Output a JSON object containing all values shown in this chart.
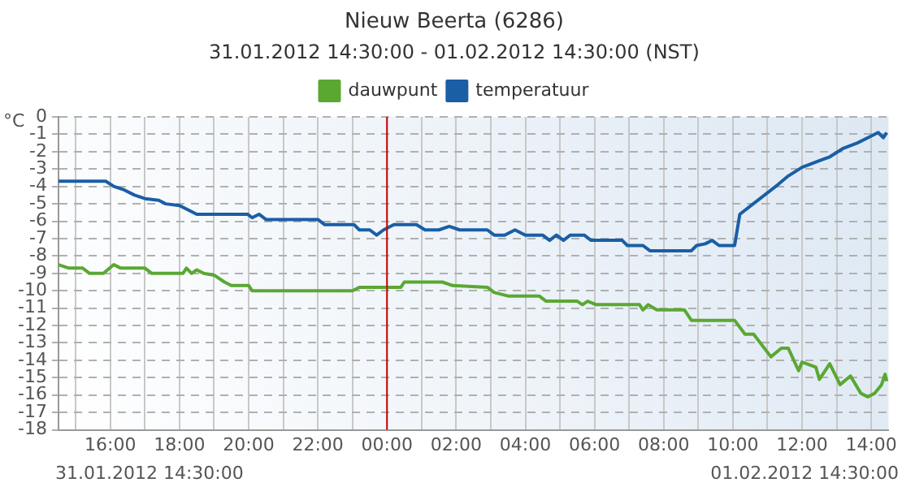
{
  "chart_data": {
    "type": "line",
    "title": "Nieuw Beerta (6286)",
    "subtitle": "31.01.2012 14:30:00 - 01.02.2012 14:30:00 (NST)",
    "ylabel": "°C",
    "annotations": [
      "31.01.2012 14:30:00",
      "01.02.2012 14:30:00"
    ],
    "xlim": [
      "2012-01-31T14:30",
      "2012-02-01T14:30"
    ],
    "xticks": [
      {
        "value": "2012-01-31T15:00",
        "label": null
      },
      {
        "value": "2012-01-31T16:00",
        "label": "16:00"
      },
      {
        "value": "2012-01-31T17:00",
        "label": null
      },
      {
        "value": "2012-01-31T18:00",
        "label": "18:00"
      },
      {
        "value": "2012-01-31T19:00",
        "label": null
      },
      {
        "value": "2012-01-31T20:00",
        "label": "20:00"
      },
      {
        "value": "2012-01-31T21:00",
        "label": null
      },
      {
        "value": "2012-01-31T22:00",
        "label": "22:00"
      },
      {
        "value": "2012-01-31T23:00",
        "label": null
      },
      {
        "value": "2012-02-01T00:00",
        "label": "00:00"
      },
      {
        "value": "2012-02-01T01:00",
        "label": null
      },
      {
        "value": "2012-02-01T02:00",
        "label": "02:00"
      },
      {
        "value": "2012-02-01T03:00",
        "label": null
      },
      {
        "value": "2012-02-01T04:00",
        "label": "04:00"
      },
      {
        "value": "2012-02-01T05:00",
        "label": null
      },
      {
        "value": "2012-02-01T06:00",
        "label": "06:00"
      },
      {
        "value": "2012-02-01T07:00",
        "label": null
      },
      {
        "value": "2012-02-01T08:00",
        "label": "08:00"
      },
      {
        "value": "2012-02-01T09:00",
        "label": null
      },
      {
        "value": "2012-02-01T10:00",
        "label": "10:00"
      },
      {
        "value": "2012-02-01T11:00",
        "label": null
      },
      {
        "value": "2012-02-01T12:00",
        "label": "12:00"
      },
      {
        "value": "2012-02-01T13:00",
        "label": null
      },
      {
        "value": "2012-02-01T14:00",
        "label": "14:00"
      }
    ],
    "ylim": [
      -18,
      0
    ],
    "yticks": [
      0,
      -1,
      -2,
      -3,
      -4,
      -5,
      -6,
      -7,
      -8,
      -9,
      -10,
      -11,
      -12,
      -13,
      -14,
      -15,
      -16,
      -17,
      -18
    ],
    "grid": true,
    "legend": "top",
    "marker": "none",
    "line_style": "solid",
    "ref_lines": [
      {
        "axis": "x",
        "value": "2012-02-01T00:00",
        "color": "#cc0000"
      }
    ],
    "series": [
      {
        "name": "dauwpunt",
        "color": "#5aa832",
        "x": [
          "2012-01-31T14:30",
          "2012-01-31T14:48",
          "2012-01-31T15:12",
          "2012-01-31T15:24",
          "2012-01-31T15:48",
          "2012-01-31T16:06",
          "2012-01-31T16:18",
          "2012-01-31T17:00",
          "2012-01-31T17:12",
          "2012-01-31T18:06",
          "2012-01-31T18:12",
          "2012-01-31T18:21",
          "2012-01-31T18:30",
          "2012-01-31T18:42",
          "2012-01-31T19:00",
          "2012-01-31T19:18",
          "2012-01-31T19:30",
          "2012-01-31T20:00",
          "2012-01-31T20:06",
          "2012-01-31T23:00",
          "2012-01-31T23:12",
          "2012-02-01T00:24",
          "2012-02-01T00:30",
          "2012-02-01T01:36",
          "2012-02-01T01:54",
          "2012-02-01T02:54",
          "2012-02-01T03:06",
          "2012-02-01T03:30",
          "2012-02-01T04:24",
          "2012-02-01T04:36",
          "2012-02-01T05:30",
          "2012-02-01T05:39",
          "2012-02-01T05:48",
          "2012-02-01T06:03",
          "2012-02-01T07:18",
          "2012-02-01T07:24",
          "2012-02-01T07:33",
          "2012-02-01T07:48",
          "2012-02-01T08:36",
          "2012-02-01T08:48",
          "2012-02-01T10:03",
          "2012-02-01T10:21",
          "2012-02-01T10:36",
          "2012-02-01T11:06",
          "2012-02-01T11:24",
          "2012-02-01T11:36",
          "2012-02-01T11:54",
          "2012-02-01T12:00",
          "2012-02-01T12:24",
          "2012-02-01T12:30",
          "2012-02-01T12:48",
          "2012-02-01T13:06",
          "2012-02-01T13:24",
          "2012-02-01T13:42",
          "2012-02-01T13:54",
          "2012-02-01T14:06",
          "2012-02-01T14:18",
          "2012-02-01T14:24",
          "2012-02-01T14:27"
        ],
        "values": [
          -8.5,
          -8.7,
          -8.7,
          -9.0,
          -9.0,
          -8.5,
          -8.7,
          -8.7,
          -9.0,
          -9.0,
          -8.7,
          -9.0,
          -8.8,
          -9.0,
          -9.1,
          -9.5,
          -9.7,
          -9.7,
          -10.0,
          -10.0,
          -9.8,
          -9.8,
          -9.5,
          -9.5,
          -9.7,
          -9.8,
          -10.1,
          -10.3,
          -10.3,
          -10.6,
          -10.6,
          -10.8,
          -10.6,
          -10.8,
          -10.8,
          -11.1,
          -10.8,
          -11.1,
          -11.1,
          -11.7,
          -11.7,
          -12.5,
          -12.5,
          -13.8,
          -13.3,
          -13.3,
          -14.6,
          -14.1,
          -14.4,
          -15.1,
          -14.2,
          -15.4,
          -14.9,
          -15.9,
          -16.1,
          -15.9,
          -15.4,
          -14.8,
          -15.2
        ]
      },
      {
        "name": "temperatuur",
        "color": "#1a5ea6",
        "x": [
          "2012-01-31T14:30",
          "2012-01-31T15:52",
          "2012-01-31T16:06",
          "2012-01-31T16:24",
          "2012-01-31T16:42",
          "2012-01-31T17:00",
          "2012-01-31T17:24",
          "2012-01-31T17:36",
          "2012-01-31T18:00",
          "2012-01-31T18:30",
          "2012-01-31T19:58",
          "2012-01-31T20:06",
          "2012-01-31T20:18",
          "2012-01-31T20:30",
          "2012-01-31T22:00",
          "2012-01-31T22:12",
          "2012-01-31T23:03",
          "2012-01-31T23:12",
          "2012-01-31T23:30",
          "2012-01-31T23:42",
          "2012-01-31T23:54",
          "2012-02-01T00:12",
          "2012-02-01T00:51",
          "2012-02-01T01:06",
          "2012-02-01T01:30",
          "2012-02-01T01:48",
          "2012-02-01T02:06",
          "2012-02-01T02:54",
          "2012-02-01T03:06",
          "2012-02-01T03:24",
          "2012-02-01T03:42",
          "2012-02-01T04:00",
          "2012-02-01T04:30",
          "2012-02-01T04:42",
          "2012-02-01T04:54",
          "2012-02-01T05:06",
          "2012-02-01T05:18",
          "2012-02-01T05:42",
          "2012-02-01T05:54",
          "2012-02-01T06:48",
          "2012-02-01T06:57",
          "2012-02-01T07:24",
          "2012-02-01T07:36",
          "2012-02-01T08:48",
          "2012-02-01T08:57",
          "2012-02-01T09:12",
          "2012-02-01T09:24",
          "2012-02-01T09:36",
          "2012-02-01T10:03",
          "2012-02-01T10:12",
          "2012-02-01T11:18",
          "2012-02-01T11:36",
          "2012-02-01T12:00",
          "2012-02-01T12:24",
          "2012-02-01T12:48",
          "2012-02-01T13:12",
          "2012-02-01T13:36",
          "2012-02-01T13:54",
          "2012-02-01T14:12",
          "2012-02-01T14:21",
          "2012-02-01T14:27"
        ],
        "values": [
          -3.7,
          -3.7,
          -4.0,
          -4.2,
          -4.5,
          -4.7,
          -4.8,
          -5.0,
          -5.1,
          -5.6,
          -5.6,
          -5.8,
          -5.6,
          -5.9,
          -5.9,
          -6.2,
          -6.2,
          -6.5,
          -6.5,
          -6.8,
          -6.5,
          -6.2,
          -6.2,
          -6.5,
          -6.5,
          -6.3,
          -6.5,
          -6.5,
          -6.8,
          -6.8,
          -6.5,
          -6.8,
          -6.8,
          -7.1,
          -6.8,
          -7.1,
          -6.8,
          -6.8,
          -7.1,
          -7.1,
          -7.4,
          -7.4,
          -7.7,
          -7.7,
          -7.4,
          -7.3,
          -7.1,
          -7.4,
          -7.4,
          -5.6,
          -3.9,
          -3.4,
          -2.9,
          -2.6,
          -2.3,
          -1.8,
          -1.5,
          -1.2,
          -0.9,
          -1.2,
          -0.9
        ]
      }
    ]
  }
}
